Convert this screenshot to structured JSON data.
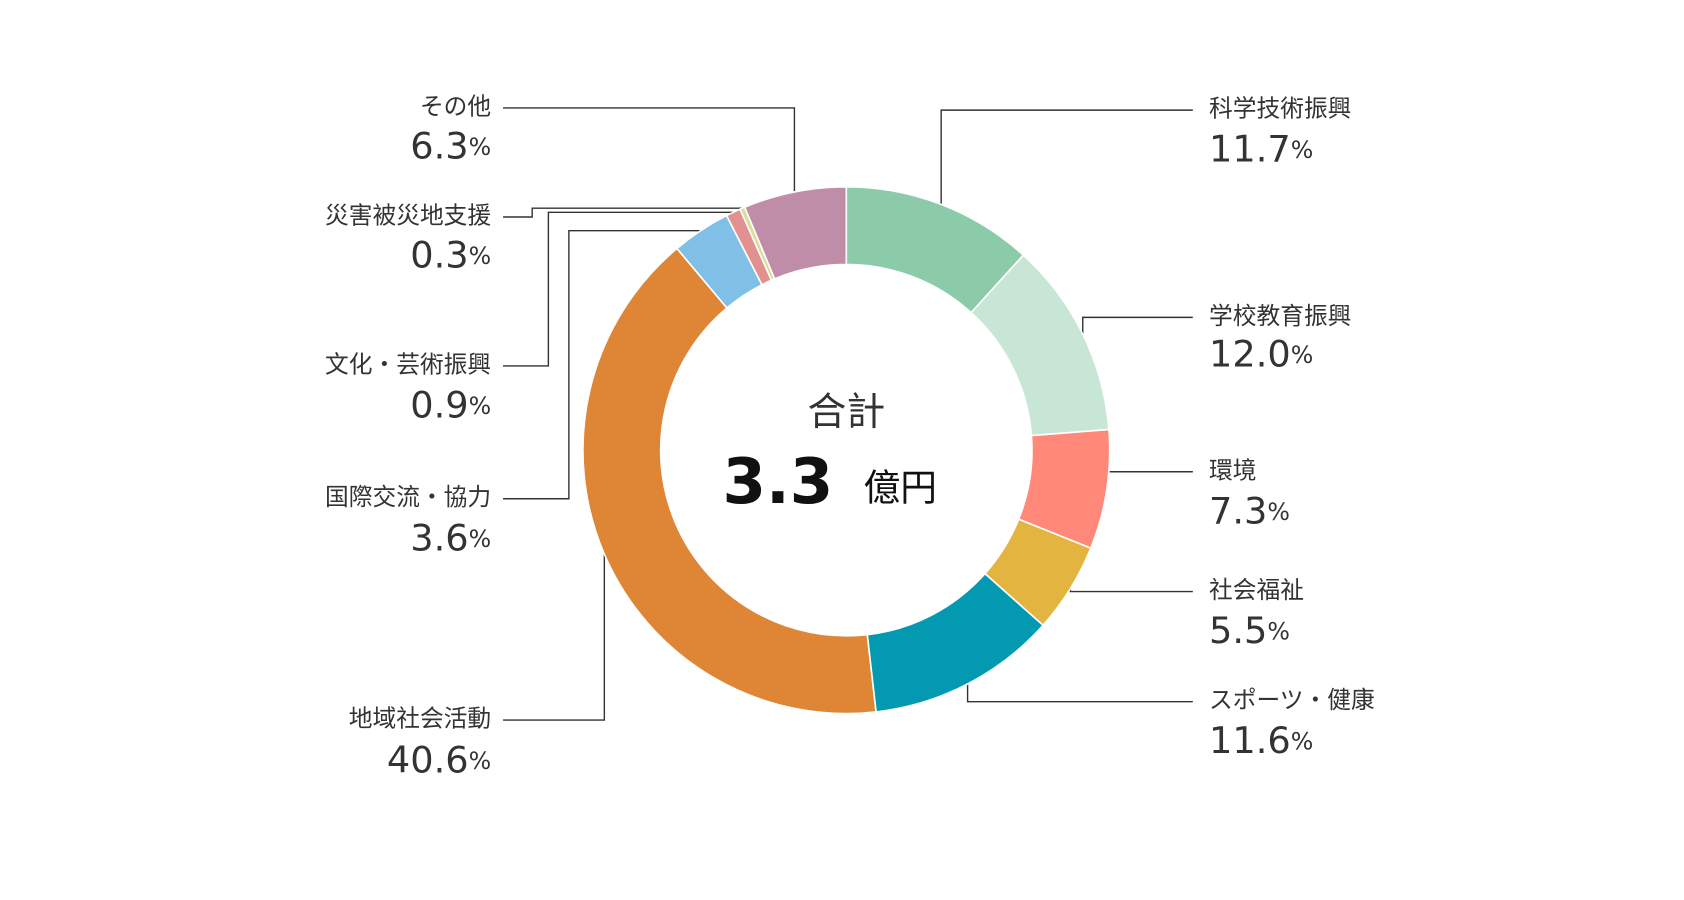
{
  "chart_data": {
    "type": "donut",
    "center": {
      "title": "合計",
      "total": 3.3,
      "unit": "億円"
    },
    "categories": [
      "科学技術振興",
      "学校教育振興",
      "環境",
      "社会福祉",
      "スポーツ・健康",
      "地域社会活動",
      "国際交流・協力",
      "文化・芸術振興",
      "災害被災地支援",
      "その他"
    ],
    "values": [
      11.7,
      12.0,
      7.3,
      5.5,
      11.6,
      40.6,
      3.6,
      0.9,
      0.3,
      6.3
    ],
    "value_labels": [
      "11.7%",
      "12.0%",
      "7.3%",
      "5.5%",
      "11.6%",
      "40.6%",
      "3.6%",
      "0.9%",
      "0.3%",
      "6.3%"
    ],
    "colors": [
      "#8ccbaa",
      "#c8e6d6",
      "#ff8878",
      "#e3b440",
      "#039ab1",
      "#de8536",
      "#80c0e6",
      "#e39090",
      "#d9dc9a",
      "#c08da9"
    ]
  }
}
